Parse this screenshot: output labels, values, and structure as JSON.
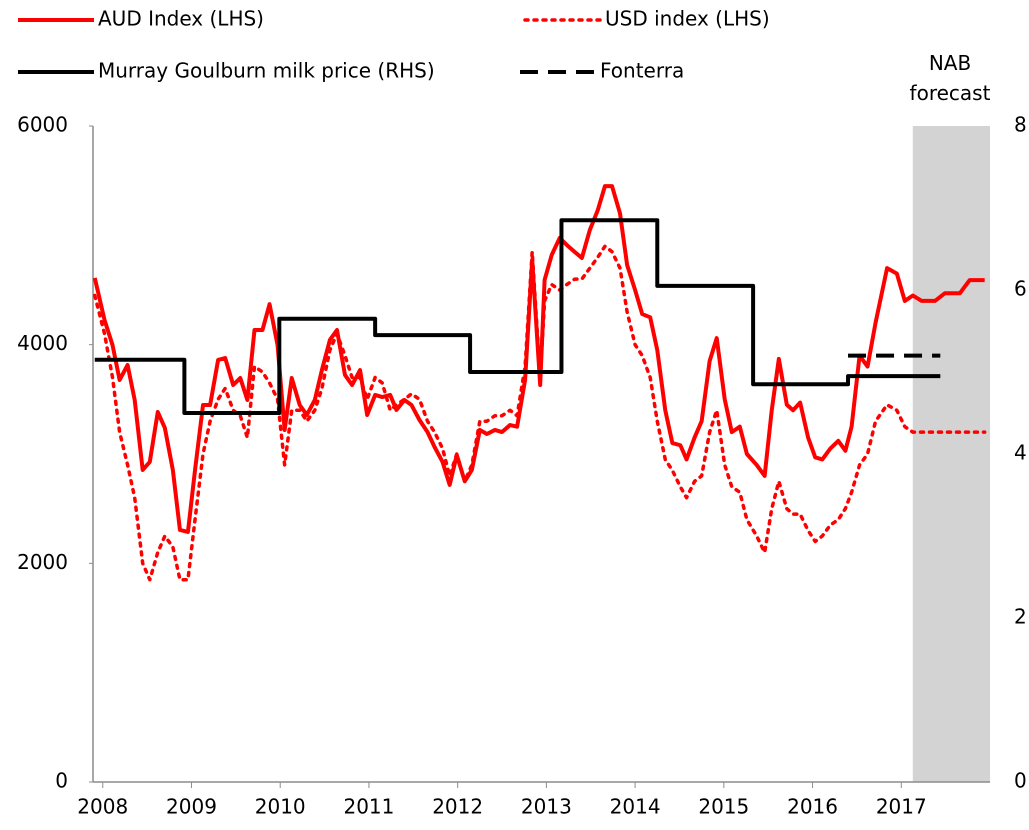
{
  "chart_data": {
    "type": "line",
    "x": [
      2007.91,
      2008.02,
      2008.11,
      2008.19,
      2008.28,
      2008.36,
      2008.45,
      2008.53,
      2008.62,
      2008.7,
      2008.79,
      2008.87,
      2008.96,
      2009.04,
      2009.13,
      2009.21,
      2009.3,
      2009.38,
      2009.47,
      2009.55,
      2009.63,
      2009.71,
      2009.8,
      2009.88,
      2009.97,
      2010.05,
      2010.13,
      2010.22,
      2010.3,
      2010.39,
      2010.47,
      2010.56,
      2010.64,
      2010.73,
      2010.81,
      2010.9,
      2010.98,
      2011.07,
      2011.15,
      2011.24,
      2011.31,
      2011.4,
      2011.48,
      2011.57,
      2011.66,
      2011.74,
      2011.83,
      2011.91,
      2011.99,
      2012.08,
      2012.16,
      2012.25,
      2012.33,
      2012.42,
      2012.5,
      2012.59,
      2012.67,
      2012.76,
      2012.84,
      2012.93,
      2012.98,
      2013.06,
      2013.15,
      2013.23,
      2013.32,
      2013.4,
      2013.49,
      2013.58,
      2013.66,
      2013.74,
      2013.83,
      2013.91,
      2014.0,
      2014.08,
      2014.17,
      2014.25,
      2014.34,
      2014.42,
      2014.51,
      2014.58,
      2014.67,
      2014.75,
      2014.84,
      2014.92,
      2015.01,
      2015.09,
      2015.18,
      2015.26,
      2015.37,
      2015.46,
      2015.54,
      2015.62,
      2015.71,
      2015.78,
      2015.86,
      2015.95,
      2016.03,
      2016.11,
      2016.2,
      2016.29,
      2016.37,
      2016.44,
      2016.53,
      2016.62,
      2016.71,
      2016.84,
      2016.95,
      2017.04,
      2017.13,
      2017.23,
      2017.38,
      2017.49,
      2017.66,
      2017.77,
      2017.94
    ],
    "series": [
      {
        "name": "AUD Index (LHS)",
        "color": "#ff0000",
        "dash": "solid",
        "values": [
          4610,
          4226,
          3997,
          3677,
          3814,
          3494,
          2854,
          2927,
          3384,
          3238,
          2854,
          2305,
          2287,
          2854,
          3448,
          3448,
          3860,
          3878,
          3631,
          3695,
          3494,
          4134,
          4134,
          4370,
          3997,
          3220,
          3695,
          3448,
          3357,
          3494,
          3768,
          4043,
          4134,
          3723,
          3631,
          3768,
          3357,
          3540,
          3521,
          3540,
          3403,
          3494,
          3448,
          3311,
          3201,
          3064,
          2927,
          2717,
          2991,
          2750,
          2854,
          3220,
          3183,
          3220,
          3201,
          3265,
          3250,
          3677,
          4775,
          3631,
          4592,
          4820,
          4976,
          4912,
          4848,
          4793,
          5049,
          5232,
          5450,
          5450,
          5200,
          4729,
          4500,
          4280,
          4250,
          3950,
          3400,
          3100,
          3080,
          2950,
          3150,
          3300,
          3850,
          4060,
          3500,
          3200,
          3250,
          3000,
          2900,
          2800,
          3400,
          3870,
          3450,
          3400,
          3470,
          3150,
          2970,
          2950,
          3050,
          3120,
          3030,
          3250,
          3900,
          3800,
          4200,
          4700,
          4650,
          4400,
          4450,
          4400,
          4400,
          4470,
          4470,
          4590,
          4590
        ]
      },
      {
        "name": "USD index (LHS)",
        "color": "#ff0000",
        "dash": "dotted",
        "values": [
          4450,
          4100,
          3700,
          3200,
          2900,
          2600,
          2000,
          1850,
          2100,
          2250,
          2150,
          1850,
          1850,
          2400,
          3000,
          3300,
          3500,
          3600,
          3400,
          3350,
          3150,
          3800,
          3750,
          3650,
          3500,
          2900,
          3400,
          3400,
          3300,
          3400,
          3600,
          3950,
          4100,
          3900,
          3700,
          3700,
          3500,
          3700,
          3650,
          3400,
          3450,
          3500,
          3550,
          3500,
          3300,
          3200,
          3050,
          2800,
          3000,
          2750,
          2900,
          3300,
          3300,
          3350,
          3350,
          3400,
          3350,
          3800,
          4850,
          3700,
          4400,
          4550,
          4500,
          4550,
          4600,
          4600,
          4700,
          4800,
          4900,
          4850,
          4700,
          4300,
          4000,
          3900,
          3700,
          3300,
          2950,
          2850,
          2700,
          2600,
          2750,
          2800,
          3200,
          3400,
          2900,
          2700,
          2650,
          2400,
          2250,
          2100,
          2500,
          2750,
          2500,
          2450,
          2450,
          2300,
          2200,
          2250,
          2350,
          2400,
          2500,
          2650,
          2900,
          3000,
          3300,
          3450,
          3400,
          3250,
          3200,
          3200,
          3200,
          3200,
          3200,
          3200,
          3200
        ]
      },
      {
        "name": "Murray Goulburn milk price (RHS)",
        "color": "#000000",
        "dash": "solid",
        "axis": "y2",
        "x": [
          2007.91,
          2008.92,
          2008.92,
          2009.99,
          2009.99,
          2011.07,
          2011.07,
          2012.14,
          2012.14,
          2013.17,
          2013.17,
          2014.25,
          2014.25,
          2015.33,
          2015.33,
          2016.4,
          2016.4,
          2017.44
        ],
        "values": [
          5.15,
          5.15,
          4.5,
          4.5,
          5.65,
          5.65,
          5.45,
          5.45,
          5.0,
          5.0,
          6.85,
          6.85,
          6.05,
          6.05,
          4.85,
          4.85,
          4.95,
          4.95
        ]
      },
      {
        "name": "Fonterra",
        "color": "#000000",
        "dash": "dashed",
        "axis": "y2",
        "x": [
          2016.4,
          2017.44
        ],
        "values": [
          5.2,
          5.2
        ]
      }
    ],
    "forecast": {
      "label": "NAB forecast",
      "x": [
        2017.13,
        2018.0
      ],
      "color": "#d3d3d3"
    },
    "xlim": [
      2007.89,
      2018.0
    ],
    "xticks": [
      2008,
      2009,
      2010,
      2011,
      2012,
      2013,
      2014,
      2015,
      2016,
      2017
    ],
    "ylim": [
      0,
      6000
    ],
    "yticks": [
      0,
      2000,
      4000,
      6000
    ],
    "y2lim": [
      0,
      8
    ],
    "y2ticks": [
      0,
      2,
      4,
      6,
      8
    ],
    "grid": false,
    "legend": "top"
  }
}
